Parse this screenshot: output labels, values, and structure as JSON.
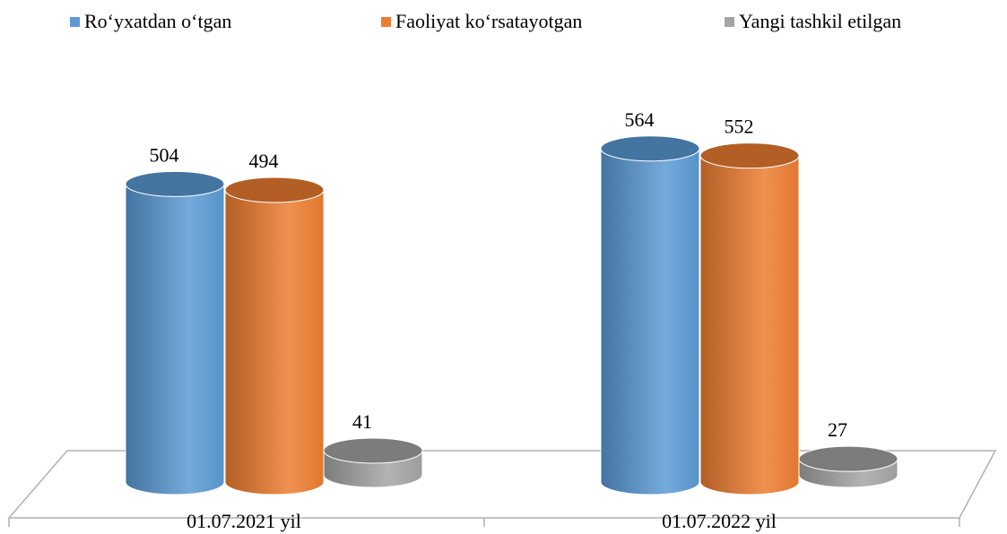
{
  "chart_data": {
    "type": "bar3d",
    "categories": [
      "01.07.2021 yil",
      "01.07.2022 yil"
    ],
    "series": [
      {
        "name": "Ro‘yxatdan o‘tgan",
        "color": "#5b9bd5",
        "values": [
          504,
          564
        ]
      },
      {
        "name": "Faoliyat ko‘rsatayotgan",
        "color": "#ed7d31",
        "values": [
          494,
          552
        ]
      },
      {
        "name": "Yangi tashkil etilgan",
        "color": "#a5a5a5",
        "values": [
          41,
          27
        ]
      }
    ]
  }
}
